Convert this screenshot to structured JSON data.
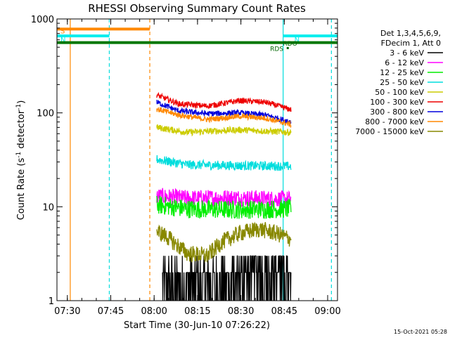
{
  "chart_data": {
    "type": "line",
    "title": "RHESSI Observing Summary Count Rates",
    "xlabel": "Start Time (30-Jun-10 07:26:22)",
    "ylabel_main": "Count Rate (s",
    "ylabel_sup1": "-1",
    "ylabel_mid": " detector",
    "ylabel_sup2": "-1",
    "ylabel_end": ")",
    "yscale": "log",
    "ylim": [
      1,
      1000
    ],
    "xlim_minutes": [
      0,
      97
    ],
    "x_ticks": [
      {
        "label": "07:30",
        "value": 3.6
      },
      {
        "label": "07:45",
        "value": 18.6
      },
      {
        "label": "08:00",
        "value": 33.6
      },
      {
        "label": "08:15",
        "value": 48.6
      },
      {
        "label": "08:30",
        "value": 63.6
      },
      {
        "label": "08:45",
        "value": 78.6
      },
      {
        "label": "09:00",
        "value": 93.6
      }
    ],
    "y_ticks": [
      {
        "label": "1",
        "value": 1
      },
      {
        "label": "10",
        "value": 10
      },
      {
        "label": "100",
        "value": 100
      },
      {
        "label": "1000",
        "value": 1000
      }
    ],
    "legend": {
      "position": "right",
      "header": [
        "Det 1,3,4,5,6,9,",
        "FDecim 1, Att 0"
      ],
      "entries": [
        {
          "label": "3 - 6 keV",
          "color": "#000000"
        },
        {
          "label": "6 - 12 keV",
          "color": "#ff00ff"
        },
        {
          "label": "12 - 25 keV",
          "color": "#00ee00"
        },
        {
          "label": "25 - 50 keV",
          "color": "#00dddd"
        },
        {
          "label": "50 - 100 keV",
          "color": "#cccc00"
        },
        {
          "label": "100 - 300 keV",
          "color": "#ee0000"
        },
        {
          "label": "300 - 800 keV",
          "color": "#0000dd"
        },
        {
          "label": "800 - 7000 keV",
          "color": "#ff8800"
        },
        {
          "label": "7000 - 15000 keV",
          "color": "#888800"
        }
      ]
    },
    "series": [
      {
        "name": "3 - 6 keV",
        "color": "#000000",
        "start": 36.5,
        "end": 81,
        "level": 1.35,
        "noise": 0.42,
        "trend": [
          [
            36.5,
            1.35
          ],
          [
            81,
            1.35
          ]
        ]
      },
      {
        "name": "6 - 12 keV",
        "color": "#ff00ff",
        "start": 34.5,
        "end": 81,
        "level": 12.5,
        "noise": 0.09,
        "trend": [
          [
            34.5,
            13
          ],
          [
            45,
            12.3
          ],
          [
            60,
            12.5
          ],
          [
            81,
            12
          ]
        ]
      },
      {
        "name": "12 - 25 keV",
        "color": "#00ee00",
        "start": 34.5,
        "end": 81,
        "level": 9.5,
        "noise": 0.1,
        "trend": [
          [
            34.5,
            10.5
          ],
          [
            45,
            9.5
          ],
          [
            60,
            9.3
          ],
          [
            81,
            9.5
          ]
        ]
      },
      {
        "name": "25 - 50 keV",
        "color": "#00dddd",
        "start": 34.5,
        "end": 81,
        "level": 28,
        "noise": 0.05,
        "trend": [
          [
            34.5,
            32
          ],
          [
            45,
            28
          ],
          [
            60,
            27.5
          ],
          [
            81,
            27
          ]
        ]
      },
      {
        "name": "50 - 100 keV",
        "color": "#cccc00",
        "start": 34.5,
        "end": 81,
        "level": 65,
        "noise": 0.035,
        "trend": [
          [
            34.5,
            70
          ],
          [
            45,
            62
          ],
          [
            63,
            66
          ],
          [
            81,
            62
          ]
        ]
      },
      {
        "name": "100 - 300 keV",
        "color": "#ee0000",
        "start": 34.5,
        "end": 81,
        "level": 125,
        "noise": 0.03,
        "trend": [
          [
            34.5,
            155
          ],
          [
            42,
            125
          ],
          [
            52,
            118
          ],
          [
            63,
            135
          ],
          [
            72,
            130
          ],
          [
            81,
            108
          ]
        ]
      },
      {
        "name": "300 - 800 keV",
        "color": "#0000dd",
        "start": 34.5,
        "end": 81,
        "level": 100,
        "noise": 0.03,
        "trend": [
          [
            34.5,
            130
          ],
          [
            42,
            105
          ],
          [
            52,
            98
          ],
          [
            63,
            100
          ],
          [
            72,
            95
          ],
          [
            81,
            80
          ]
        ]
      },
      {
        "name": "800 - 7000 keV",
        "color": "#ff8800",
        "start": 34.5,
        "end": 81,
        "level": 90,
        "noise": 0.03,
        "trend": [
          [
            34.5,
            110
          ],
          [
            42,
            95
          ],
          [
            52,
            85
          ],
          [
            63,
            92
          ],
          [
            72,
            88
          ],
          [
            81,
            75
          ]
        ]
      },
      {
        "name": "7000 - 15000 keV",
        "color": "#888800",
        "start": 34.5,
        "end": 81,
        "level": 4,
        "noise": 0.09,
        "trend": [
          [
            34.5,
            5.5
          ],
          [
            38,
            4.8
          ],
          [
            45,
            3.2
          ],
          [
            52,
            3.0
          ],
          [
            57,
            4.2
          ],
          [
            63,
            5.2
          ],
          [
            70,
            5.8
          ],
          [
            76,
            5.2
          ],
          [
            81,
            4.5
          ]
        ]
      }
    ],
    "vertical_markers": [
      {
        "color": "#ff8800",
        "value": 4.6,
        "style": "solid"
      },
      {
        "color": "#00dddd",
        "value": 18.1,
        "style": "dashed"
      },
      {
        "color": "#ff8800",
        "value": 32.1,
        "style": "dashed"
      },
      {
        "color": "#00dddd",
        "value": 78.2,
        "style": "solid"
      },
      {
        "color": "#00dddd",
        "value": 94.9,
        "style": "dashed"
      }
    ],
    "state_bars": [
      {
        "label": "S",
        "color": "#ff8800",
        "from": 0,
        "to": 32.1,
        "y": 780
      },
      {
        "label": "N",
        "color": "#00eeee",
        "from": 0,
        "to": 18.1,
        "y": 660
      },
      {
        "label": "N",
        "color": "#00eeee",
        "from": 78.2,
        "to": 97,
        "y": 660
      },
      {
        "label": "",
        "color": "#007700",
        "from": 0,
        "to": 97,
        "y": 560
      }
    ],
    "annotations": [
      {
        "label": "RDS",
        "minute": 76,
        "y": 490
      },
      {
        "label": "RDO",
        "minute": 80.6,
        "y": 555
      }
    ],
    "timestamp": "15-Oct-2021 05:28"
  }
}
